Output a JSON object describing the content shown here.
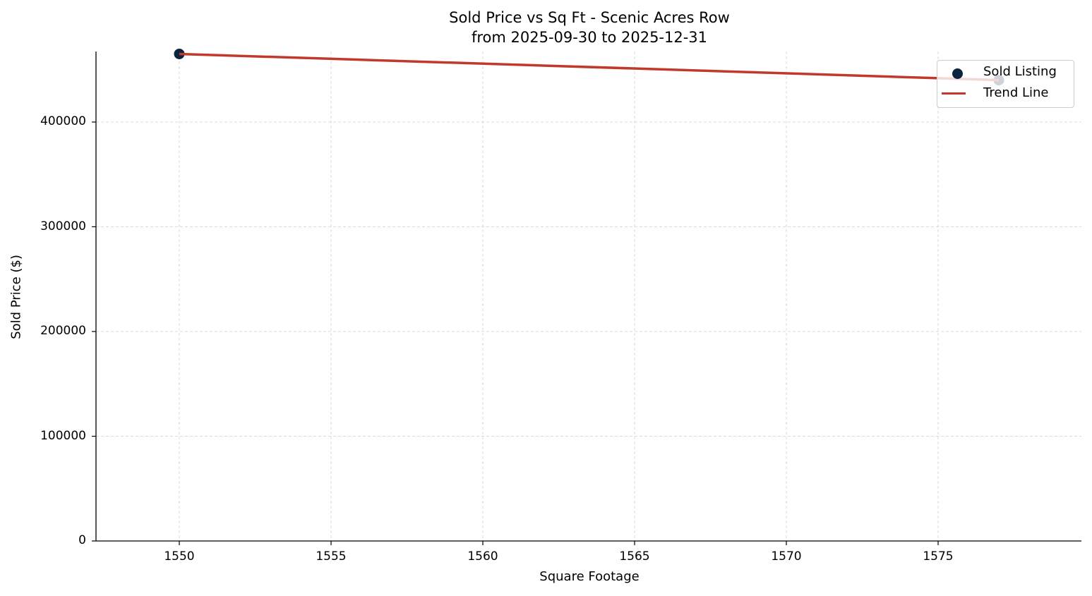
{
  "chart_data": {
    "type": "scatter",
    "title": "Sold Price vs Sq Ft - Scenic Acres Row",
    "subtitle": "from 2025-09-30 to 2025-12-31",
    "xlabel": "Square Footage",
    "ylabel": "Sold Price ($)",
    "xlim": [
      1547.3,
      1579.4
    ],
    "ylim": [
      0,
      467000
    ],
    "x_ticks": [
      "1550",
      "1555",
      "1560",
      "1565",
      "1570",
      "1575"
    ],
    "y_ticks": [
      "0",
      "100000",
      "200000",
      "300000",
      "400000"
    ],
    "grid": true,
    "legend_position": "upper right",
    "series": [
      {
        "name": "Sold Listing",
        "type": "scatter",
        "color": "#0c2340",
        "points": [
          {
            "x": 1550,
            "y": 465000
          },
          {
            "x": 1577,
            "y": 440000
          }
        ]
      },
      {
        "name": "Trend Line",
        "type": "line",
        "color": "#c0392b",
        "points": [
          {
            "x": 1550,
            "y": 465000
          },
          {
            "x": 1577,
            "y": 440000
          }
        ]
      }
    ]
  },
  "legend": {
    "items": [
      "Sold Listing",
      "Trend Line"
    ]
  }
}
